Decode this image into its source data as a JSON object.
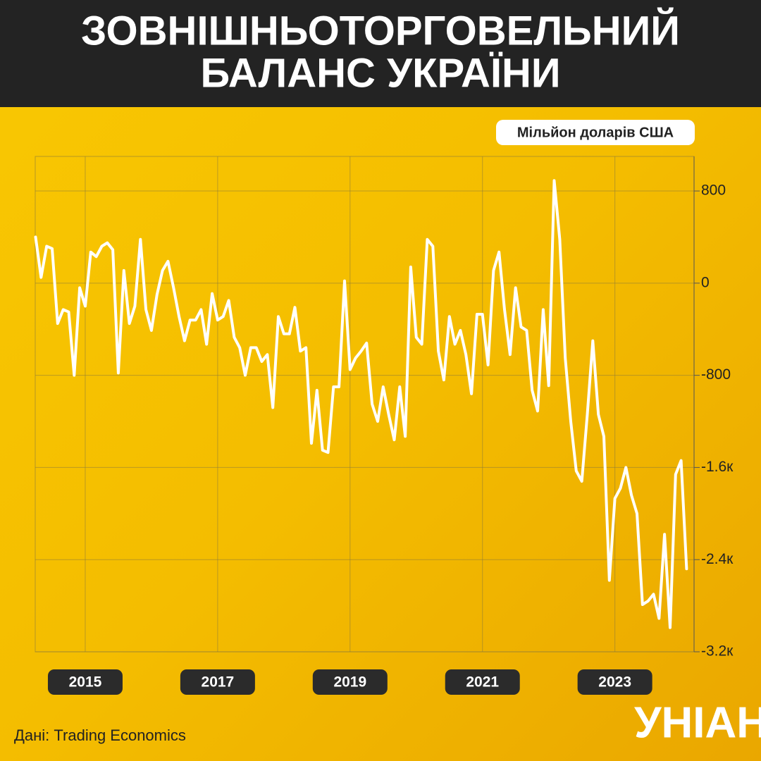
{
  "chart_data": {
    "type": "line",
    "title": [
      "ЗОВНІШНЬОТОРГОВЕЛЬНИЙ",
      "БАЛАНС УКРАЇНИ"
    ],
    "y_axis_label": "Мільйон доларів США",
    "source": "Дані: Trading Economics",
    "logo": "УНІАН",
    "categories": [
      null,
      null,
      null,
      null,
      null,
      null,
      null,
      null,
      null,
      "2015",
      null,
      null,
      null,
      null,
      null,
      null,
      null,
      null,
      null,
      null,
      null,
      null,
      null,
      null,
      null,
      null,
      null,
      null,
      null,
      null,
      null,
      null,
      null,
      "2017",
      null,
      null,
      null,
      null,
      null,
      null,
      null,
      null,
      null,
      null,
      null,
      null,
      null,
      null,
      null,
      null,
      null,
      null,
      null,
      null,
      null,
      null,
      null,
      "2019",
      null,
      null,
      null,
      null,
      null,
      null,
      null,
      null,
      null,
      null,
      null,
      null,
      null,
      null,
      null,
      null,
      null,
      null,
      null,
      null,
      null,
      null,
      null,
      "2021",
      null,
      null,
      null,
      null,
      null,
      null,
      null,
      null,
      null,
      null,
      null,
      null,
      null,
      null,
      null,
      null,
      null,
      null,
      null,
      null,
      null,
      null,
      null,
      "2023",
      null,
      null,
      null,
      null,
      null,
      null,
      null,
      null,
      null,
      null,
      null,
      null,
      null
    ],
    "series": [
      {
        "color": "#ffffff",
        "values": [
          400,
          50,
          320,
          300,
          -350,
          -230,
          -250,
          -800,
          -40,
          -200,
          270,
          230,
          320,
          350,
          290,
          -780,
          110,
          -350,
          -200,
          380,
          -230,
          -410,
          -100,
          110,
          190,
          -40,
          -290,
          -500,
          -320,
          -320,
          -230,
          -530,
          -90,
          -320,
          -290,
          -150,
          -470,
          -560,
          -800,
          -560,
          -560,
          -680,
          -620,
          -1080,
          -290,
          -440,
          -440,
          -210,
          -590,
          -560,
          -1390,
          -930,
          -1450,
          -1470,
          -900,
          -900,
          20,
          -750,
          -650,
          -590,
          -520,
          -1050,
          -1200,
          -900,
          -1140,
          -1360,
          -900,
          -1330,
          140,
          -470,
          -530,
          380,
          320,
          -590,
          -840,
          -290,
          -530,
          -410,
          -620,
          -960,
          -270,
          -270,
          -710,
          110,
          270,
          -230,
          -620,
          -40,
          -380,
          -410,
          -930,
          -1110,
          -230,
          -890,
          890,
          380,
          -650,
          -1200,
          -1630,
          -1720,
          -1140,
          -500,
          -1140,
          -1330,
          -2580,
          -1870,
          -1780,
          -1600,
          -1840,
          -2000,
          -2790,
          -2760,
          -2700,
          -2910,
          -2180,
          -2990,
          -1660,
          -1540,
          -2480
        ]
      }
    ],
    "ylim": [
      -3200,
      1100
    ],
    "yticks": [
      800,
      0,
      -800,
      {
        "value": -1600,
        "label": "-1.6к"
      },
      {
        "value": -2400,
        "label": "-2.4к"
      },
      {
        "value": -3200,
        "label": "-3.2к"
      }
    ],
    "grid": true
  }
}
